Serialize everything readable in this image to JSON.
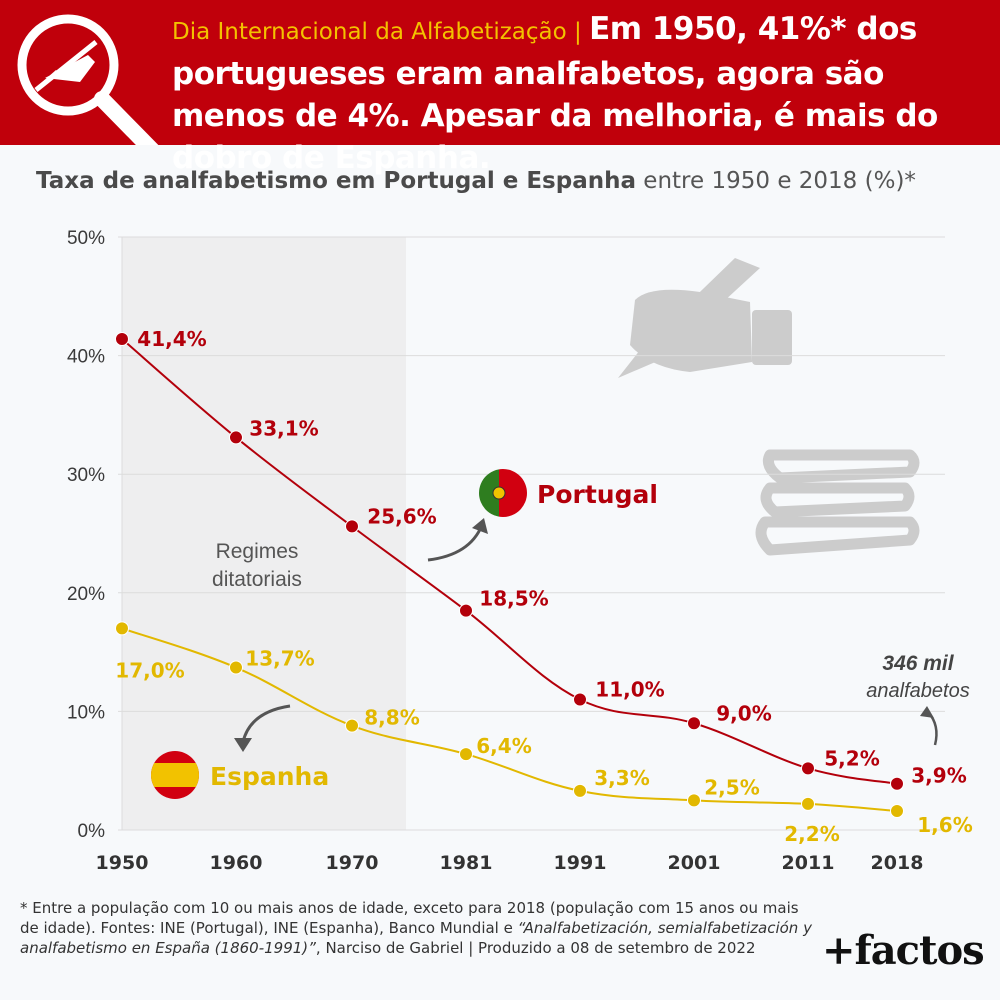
{
  "header": {
    "tag": "Dia Internacional da Alfabetização",
    "separator": " | ",
    "headline": "Em 1950, 41%* dos portugueses eram analfabetos, agora são menos de 4%. Apesar da melhoria, é mais do dobro de Espanha."
  },
  "subtitle": {
    "bold": "Taxa de analfabetismo em Portugal e Espanha",
    "rest": " entre 1950 e 2018 (%)*"
  },
  "annotations": {
    "regime_line1": "Regimes",
    "regime_line2": "ditatoriais",
    "count_value": "346 mil",
    "count_unit": "analfabetos"
  },
  "chart_data": {
    "type": "line",
    "title": "Taxa de analfabetismo em Portugal e Espanha entre 1950 e 2018 (%)*",
    "categories": [
      "1950",
      "1960",
      "1970",
      "1981",
      "1991",
      "2001",
      "2011",
      "2018"
    ],
    "x": [
      1950,
      1960,
      1970,
      1981,
      1991,
      2001,
      2011,
      2018
    ],
    "ylim": [
      0,
      50
    ],
    "yticks": [
      "0%",
      "10%",
      "20%",
      "30%",
      "40%",
      "50%"
    ],
    "grid": true,
    "shaded_period": [
      1950,
      1975
    ],
    "series": [
      {
        "name": "Portugal",
        "color": "#b3000b",
        "values": [
          41.4,
          33.1,
          25.6,
          18.5,
          11.0,
          9.0,
          5.2,
          3.9
        ],
        "labels": [
          "41,4%",
          "33,1%",
          "25,6%",
          "18,5%",
          "11,0%",
          "9,0%",
          "5,2%",
          "3,9%"
        ]
      },
      {
        "name": "Espanha",
        "color": "#e2b800",
        "values": [
          17.0,
          13.7,
          8.8,
          6.4,
          3.3,
          2.5,
          2.2,
          1.6
        ],
        "labels": [
          "17,0%",
          "13,7%",
          "8,8%",
          "6,4%",
          "3,3%",
          "2,5%",
          "2,2%",
          "1,6%"
        ]
      }
    ]
  },
  "footnote": {
    "text1": "* Entre a população com 10 ou mais anos de idade, exceto para 2018 (população com 15 anos ou mais de idade). Fontes: INE (Portugal), INE (Espanha), Banco Mundial e ",
    "italic": "“Analfabetización, semialfabetización y analfabetismo en España (1860-1991)”",
    "text2": ", Narciso de Gabriel | Produzido a 08 de setembro de 2022"
  },
  "brand": "+factos"
}
